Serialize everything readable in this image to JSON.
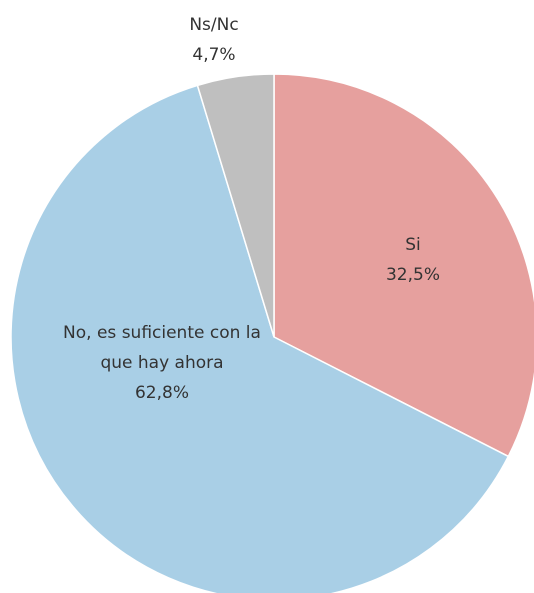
{
  "chart_data": {
    "type": "pie",
    "categories": [
      "Si",
      "No, es suficiente con la que hay ahora",
      "Ns/Nc"
    ],
    "values": [
      32.5,
      62.8,
      4.7
    ],
    "value_labels": [
      "32,5%",
      "62,8%",
      "4,7%"
    ],
    "colors": [
      "#e6a09e",
      "#a9cfe6",
      "#bfbfbf"
    ]
  }
}
